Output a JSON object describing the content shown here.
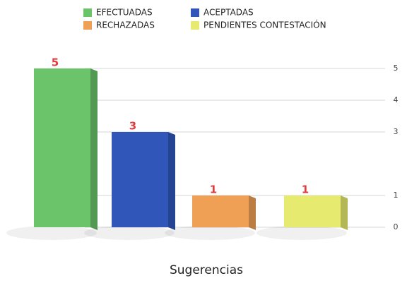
{
  "chart_data": {
    "type": "bar",
    "categories": [
      "EFECTUADAS",
      "ACEPTADAS",
      "RECHAZADAS",
      "PENDIENTES CONTESTACIÓN"
    ],
    "values": [
      5,
      3,
      1,
      1
    ],
    "colors": [
      "#6cc46a",
      "#2f56b8",
      "#f0a055",
      "#e6ea6e"
    ],
    "x_label": "Sugerencias",
    "ylim": [
      0,
      5
    ],
    "yticks": [
      0,
      1,
      3,
      4,
      5
    ],
    "grid": true
  }
}
